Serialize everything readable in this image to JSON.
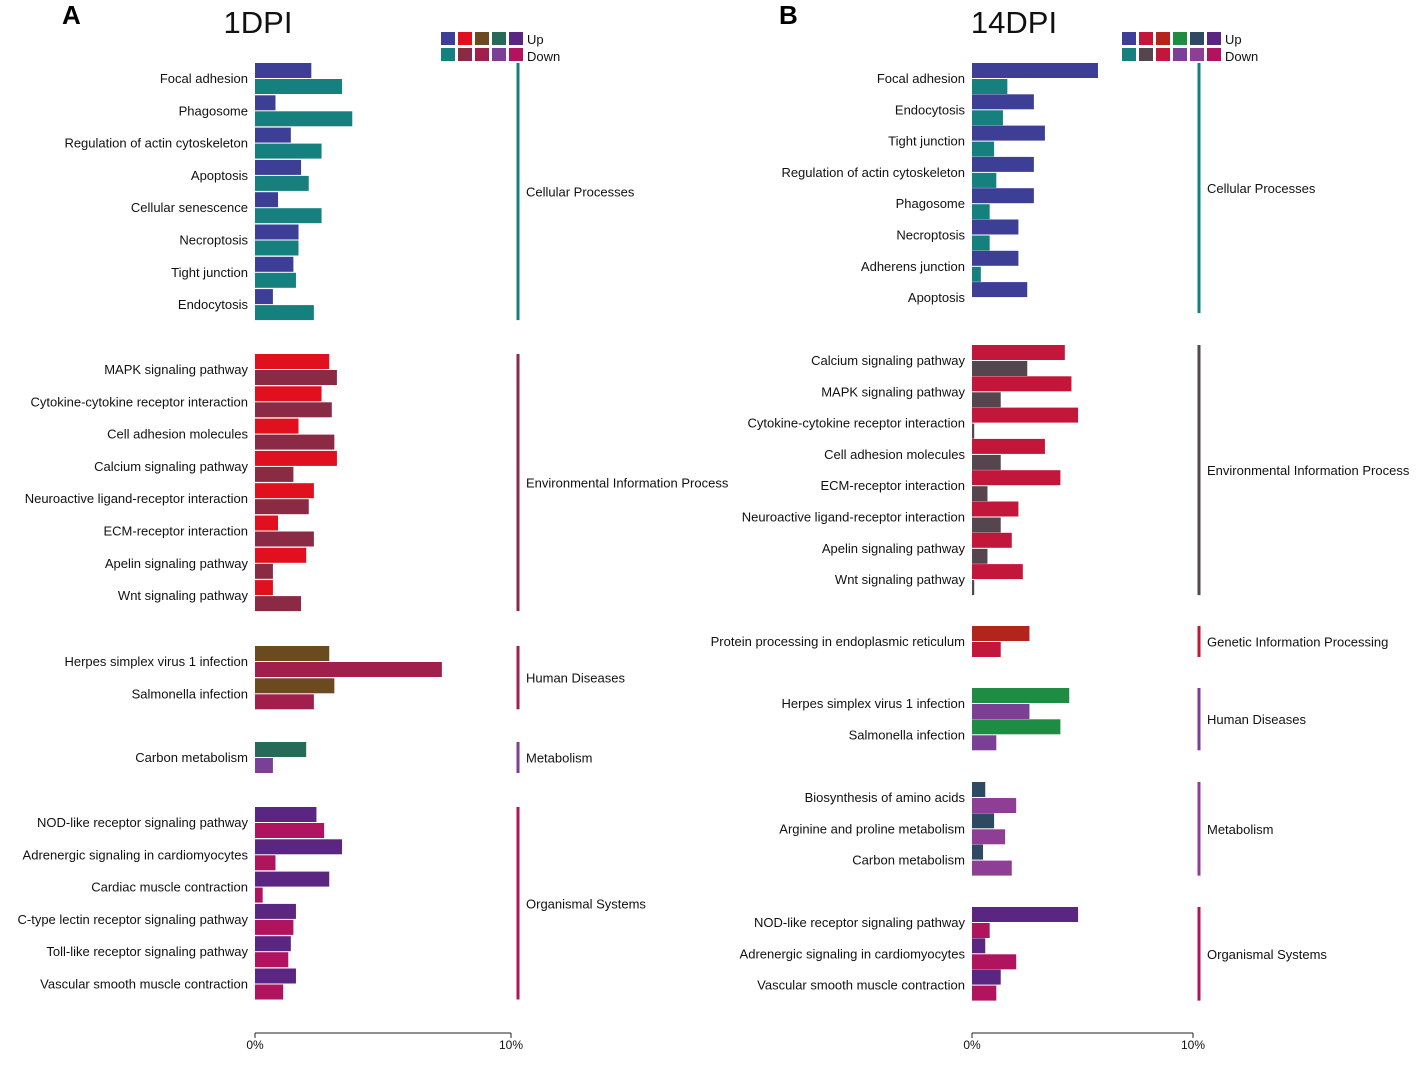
{
  "chart_data": [
    {
      "type": "bar",
      "orientation": "horizontal",
      "panel_letter": "A",
      "title": "1DPI",
      "legend": {
        "up_label": "Up",
        "down_label": "Down",
        "up_colors": [
          "#3D3F97",
          "#E0101E",
          "#6B4A20",
          "#266B57",
          "#5A2681"
        ],
        "down_colors": [
          "#16807E",
          "#8A2A45",
          "#A11F4C",
          "#7B3F95",
          "#B0145E"
        ]
      },
      "xlim": [
        0,
        10
      ],
      "x_ticks": [
        "0%",
        "10%"
      ],
      "groups": [
        {
          "name": "Cellular Processes",
          "up_color": "#3D3F97",
          "down_color": "#16807E",
          "terms": [
            "Focal adhesion",
            "Phagosome",
            "Regulation of actin cytoskeleton",
            "Apoptosis",
            "Cellular senescence",
            "Necroptosis",
            "Tight junction",
            "Endocytosis"
          ],
          "up": [
            2.2,
            0.8,
            1.4,
            1.8,
            0.9,
            1.7,
            1.5,
            0.7
          ],
          "down": [
            3.4,
            3.8,
            2.6,
            2.1,
            2.6,
            1.7,
            1.6,
            2.3
          ]
        },
        {
          "name": "Environmental Information Process",
          "up_color": "#E0101E",
          "down_color": "#8A2A45",
          "terms": [
            "MAPK signaling pathway",
            "Cytokine-cytokine receptor interaction",
            "Cell adhesion molecules",
            "Calcium signaling pathway",
            "Neuroactive ligand-receptor interaction",
            "ECM-receptor interaction",
            "Apelin signaling pathway",
            "Wnt signaling pathway"
          ],
          "up": [
            2.9,
            2.6,
            1.7,
            3.2,
            2.3,
            0.9,
            2.0,
            0.7
          ],
          "down": [
            3.2,
            3.0,
            3.1,
            1.5,
            2.1,
            2.3,
            0.7,
            1.8
          ]
        },
        {
          "name": "Human Diseases",
          "up_color": "#6B4A20",
          "down_color": "#A11F4C",
          "terms": [
            "Herpes simplex virus 1 infection",
            "Salmonella infection"
          ],
          "up": [
            2.9,
            3.1
          ],
          "down": [
            7.3,
            2.3
          ]
        },
        {
          "name": "Metabolism",
          "up_color": "#266B57",
          "down_color": "#7B3F95",
          "terms": [
            "Carbon metabolism"
          ],
          "up": [
            2.0
          ],
          "down": [
            0.7
          ]
        },
        {
          "name": "Organismal Systems",
          "up_color": "#5A2681",
          "down_color": "#B0145E",
          "terms": [
            "NOD-like receptor signaling pathway",
            "Adrenergic signaling in cardiomyocytes",
            "Cardiac muscle contraction",
            "C-type lectin receptor signaling pathway",
            "Toll-like receptor signaling pathway",
            "Vascular smooth muscle contraction"
          ],
          "up": [
            2.4,
            3.4,
            2.9,
            1.6,
            1.4,
            1.6
          ],
          "down": [
            2.7,
            0.8,
            0.3,
            1.5,
            1.3,
            1.1
          ]
        }
      ]
    },
    {
      "type": "bar",
      "orientation": "horizontal",
      "panel_letter": "B",
      "title": "14DPI",
      "legend": {
        "up_label": "Up",
        "down_label": "Down",
        "up_colors": [
          "#3D3F97",
          "#C2173A",
          "#B3251C",
          "#1E8C43",
          "#2E4A63",
          "#5A2681"
        ],
        "down_colors": [
          "#16807E",
          "#54454F",
          "#C2173A",
          "#7B3F95",
          "#8E3F95",
          "#B0145E"
        ]
      },
      "xlim": [
        0,
        10
      ],
      "x_ticks": [
        "0%",
        "10%"
      ],
      "groups": [
        {
          "name": "Cellular Processes",
          "up_color": "#3D3F97",
          "down_color": "#16807E",
          "terms": [
            "Focal adhesion",
            "Endocytosis",
            "Tight junction",
            "Regulation of actin cytoskeleton",
            "Phagosome",
            "Necroptosis",
            "Adherens junction",
            "Apoptosis"
          ],
          "up": [
            5.7,
            2.8,
            3.3,
            2.8,
            2.8,
            2.1,
            2.1,
            2.5
          ],
          "down": [
            1.6,
            1.4,
            1.0,
            1.1,
            0.8,
            0.8,
            0.4,
            0
          ]
        },
        {
          "name": "Environmental Information Process",
          "up_color": "#C2173A",
          "down_color": "#54454F",
          "terms": [
            "Calcium signaling pathway",
            "MAPK signaling pathway",
            "Cytokine-cytokine receptor interaction",
            "Cell adhesion molecules",
            "ECM-receptor interaction",
            "Neuroactive ligand-receptor interaction",
            "Apelin signaling pathway",
            "Wnt signaling pathway"
          ],
          "up": [
            4.2,
            4.5,
            4.8,
            3.3,
            4.0,
            2.1,
            1.8,
            2.3
          ],
          "down": [
            2.5,
            1.3,
            0.1,
            1.3,
            0.7,
            1.3,
            0.7,
            0.1
          ]
        },
        {
          "name": "Genetic Information Processing",
          "up_color": "#B3251C",
          "down_color": "#C2173A",
          "terms": [
            "Protein processing in endoplasmic reticulum"
          ],
          "up": [
            2.6
          ],
          "down": [
            1.3
          ]
        },
        {
          "name": "Human Diseases",
          "up_color": "#1E8C43",
          "down_color": "#7B3F95",
          "terms": [
            "Herpes simplex virus 1 infection",
            "Salmonella infection"
          ],
          "up": [
            4.4,
            4.0
          ],
          "down": [
            2.6,
            1.1
          ]
        },
        {
          "name": "Metabolism",
          "up_color": "#2E4A63",
          "down_color": "#8E3F95",
          "terms": [
            "Biosynthesis of amino acids",
            "Arginine and proline metabolism",
            "Carbon metabolism"
          ],
          "up": [
            0.6,
            1.0,
            0.5
          ],
          "down": [
            2.0,
            1.5,
            1.8
          ]
        },
        {
          "name": "Organismal Systems",
          "up_color": "#5A2681",
          "down_color": "#B0145E",
          "terms": [
            "NOD-like receptor signaling pathway",
            "Adrenergic signaling in cardiomyocytes",
            "Vascular smooth muscle contraction"
          ],
          "up": [
            4.8,
            0.6,
            1.3
          ],
          "down": [
            0.8,
            2.0,
            1.1
          ]
        }
      ]
    }
  ]
}
